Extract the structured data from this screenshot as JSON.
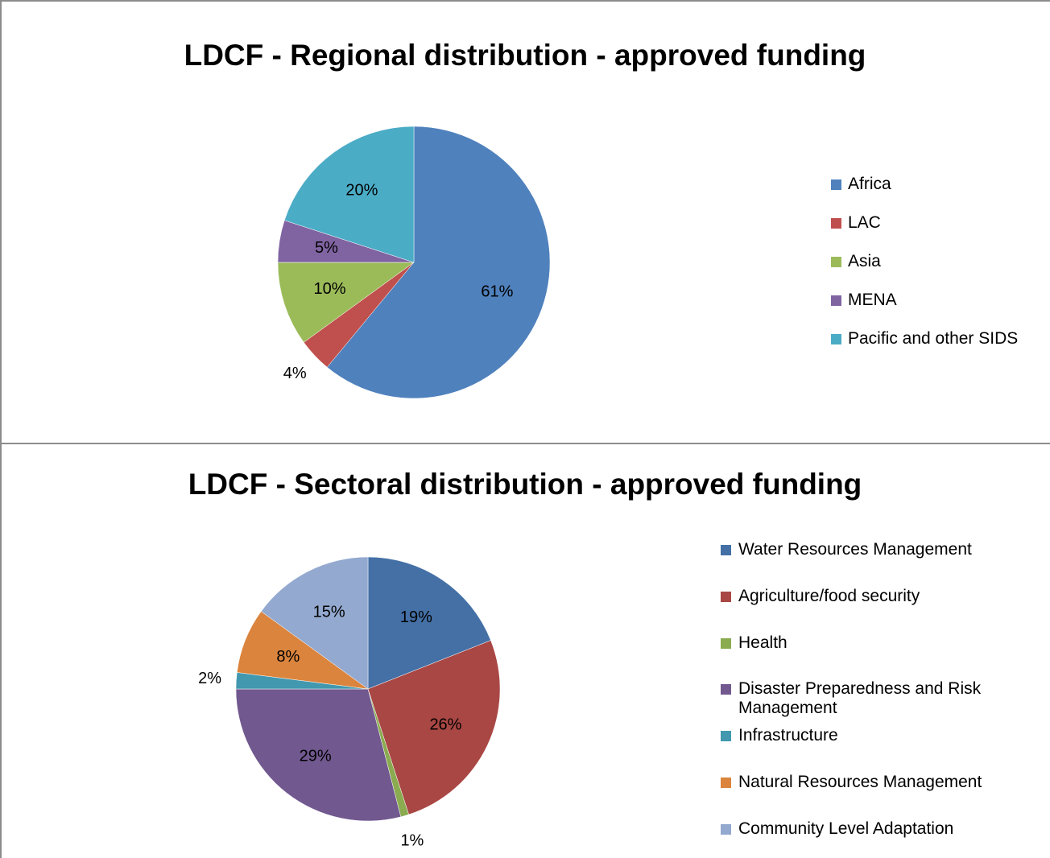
{
  "chart_data": [
    {
      "type": "pie",
      "title": "LDCF - Regional distribution - approved funding",
      "categories": [
        "Africa",
        "LAC",
        "Asia",
        "MENA",
        "Pacific and other SIDS"
      ],
      "values": [
        61,
        4,
        10,
        5,
        20
      ],
      "value_labels": [
        "61%",
        "4%",
        "10%",
        "5%",
        "20%"
      ],
      "colors": [
        "#4f81bd",
        "#c0504d",
        "#9bbb59",
        "#8064a2",
        "#4bacc6"
      ],
      "legend": "right"
    },
    {
      "type": "pie",
      "title": "LDCF - Sectoral distribution - approved funding",
      "categories": [
        "Water Resources Management",
        "Agriculture/food security",
        "Health",
        "Disaster Preparedness and Risk Management",
        "Infrastructure",
        "Natural Resources Management",
        "Community Level Adaptation"
      ],
      "values": [
        19,
        26,
        1,
        29,
        2,
        8,
        15
      ],
      "value_labels": [
        "19%",
        "26%",
        "1%",
        "29%",
        "2%",
        "8%",
        "15%"
      ],
      "colors": [
        "#4470a6",
        "#a94744",
        "#8aab4f",
        "#71588f",
        "#4198af",
        "#db843d",
        "#93a9cf"
      ],
      "legend": "right"
    }
  ]
}
